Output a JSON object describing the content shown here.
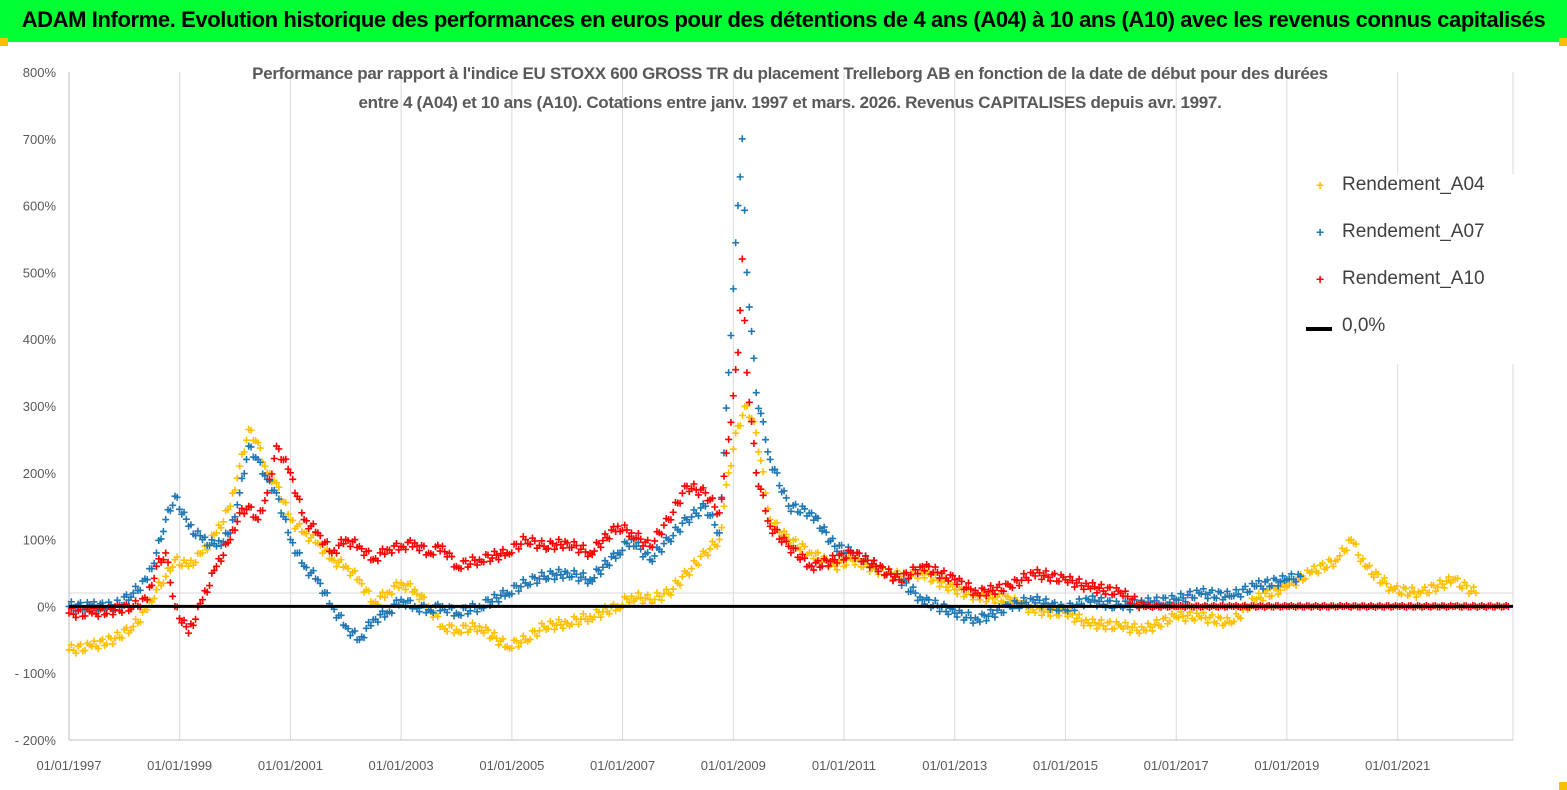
{
  "header": {
    "title": "ADAM Informe. Evolution historique des performances en euros pour des détentions de 4 ans (A04) à 10 ans (A10) avec les revenus connus capitalisés"
  },
  "colors": {
    "banner": "#00ff33",
    "A04": "#ffc000",
    "A07": "#1f77b4",
    "A10": "#ff0000",
    "zero": "#000000",
    "grid": "#d9d9d9"
  },
  "chart_data": {
    "type": "scatter",
    "title_line1": "Performance par rapport à l'indice EU STOXX 600 GROSS TR  du placement Trelleborg AB en fonction de la date de début pour des durées",
    "title_line2": "entre 4 (A04) et 10 ans (A10). Cotations entre janv. 1997 et mars. 2026. Revenus CAPITALISES depuis avr. 1997.",
    "xlabel": "",
    "ylabel": "",
    "x_range": [
      "1997-01-01",
      "2023-02-01"
    ],
    "ylim": [
      -200,
      800
    ],
    "y_ticks": [
      800,
      700,
      600,
      500,
      400,
      300,
      200,
      100,
      0,
      -100,
      -200
    ],
    "y_tick_labels": [
      "800%",
      "700%",
      "600%",
      "500%",
      "400%",
      "300%",
      "200%",
      "100%",
      "0%",
      "- 100%",
      "- 200%"
    ],
    "x_tick_labels": [
      "01/01/1997",
      "01/01/1999",
      "01/01/2001",
      "01/01/2003",
      "01/01/2005",
      "01/01/2007",
      "01/01/2009",
      "01/01/2011",
      "01/01/2013",
      "01/01/2015",
      "01/01/2017",
      "01/01/2019",
      "01/01/2021"
    ],
    "grid": "vertical lines at each x tick",
    "legend_position": "top-right",
    "series": [
      {
        "name": "Rendement_A04",
        "marker": "+",
        "points": [
          [
            "1997-01-01",
            -65
          ],
          [
            "1997-06-01",
            -60
          ],
          [
            "1997-11-01",
            -48
          ],
          [
            "1998-03-01",
            -30
          ],
          [
            "1998-06-01",
            -5
          ],
          [
            "1998-08-01",
            25
          ],
          [
            "1998-10-01",
            45
          ],
          [
            "1998-12-01",
            70
          ],
          [
            "1999-03-01",
            60
          ],
          [
            "1999-06-01",
            80
          ],
          [
            "1999-09-01",
            110
          ],
          [
            "1999-12-01",
            150
          ],
          [
            "2000-02-01",
            210
          ],
          [
            "2000-04-01",
            265
          ],
          [
            "2000-06-01",
            245
          ],
          [
            "2000-08-01",
            200
          ],
          [
            "2000-10-01",
            185
          ],
          [
            "2001-01-01",
            130
          ],
          [
            "2001-04-01",
            110
          ],
          [
            "2001-07-01",
            95
          ],
          [
            "2001-10-01",
            70
          ],
          [
            "2002-01-01",
            60
          ],
          [
            "2002-04-01",
            40
          ],
          [
            "2002-07-01",
            5
          ],
          [
            "2002-10-01",
            20
          ],
          [
            "2003-01-01",
            35
          ],
          [
            "2003-04-01",
            25
          ],
          [
            "2003-07-01",
            0
          ],
          [
            "2003-10-01",
            -30
          ],
          [
            "2004-01-01",
            -35
          ],
          [
            "2004-06-01",
            -30
          ],
          [
            "2004-12-01",
            -60
          ],
          [
            "2005-04-01",
            -50
          ],
          [
            "2005-08-01",
            -30
          ],
          [
            "2006-01-01",
            -25
          ],
          [
            "2006-06-01",
            -15
          ],
          [
            "2006-12-01",
            0
          ],
          [
            "2007-03-01",
            15
          ],
          [
            "2007-07-01",
            10
          ],
          [
            "2007-11-01",
            20
          ],
          [
            "2008-03-01",
            50
          ],
          [
            "2008-07-01",
            80
          ],
          [
            "2008-10-01",
            100
          ],
          [
            "2008-12-01",
            200
          ],
          [
            "2009-02-01",
            270
          ],
          [
            "2009-04-01",
            300
          ],
          [
            "2009-06-01",
            260
          ],
          [
            "2009-09-01",
            130
          ],
          [
            "2010-01-01",
            100
          ],
          [
            "2010-06-01",
            80
          ],
          [
            "2010-11-01",
            60
          ],
          [
            "2011-03-01",
            70
          ],
          [
            "2011-08-01",
            55
          ],
          [
            "2012-01-01",
            45
          ],
          [
            "2012-06-01",
            50
          ],
          [
            "2013-01-01",
            25
          ],
          [
            "2013-06-01",
            15
          ],
          [
            "2014-01-01",
            10
          ],
          [
            "2014-06-01",
            -5
          ],
          [
            "2015-01-01",
            -10
          ],
          [
            "2015-06-01",
            -25
          ],
          [
            "2016-01-01",
            -30
          ],
          [
            "2016-06-01",
            -35
          ],
          [
            "2017-01-01",
            -15
          ],
          [
            "2017-06-01",
            -15
          ],
          [
            "2018-01-01",
            -25
          ],
          [
            "2018-06-01",
            10
          ],
          [
            "2019-01-01",
            30
          ],
          [
            "2019-06-01",
            50
          ],
          [
            "2019-12-01",
            70
          ],
          [
            "2020-03-01",
            100
          ],
          [
            "2020-06-01",
            60
          ],
          [
            "2020-12-01",
            25
          ],
          [
            "2021-06-01",
            20
          ],
          [
            "2022-01-01",
            40
          ],
          [
            "2022-06-01",
            20
          ]
        ]
      },
      {
        "name": "Rendement_A07",
        "marker": "+",
        "points": [
          [
            "1997-01-01",
            0
          ],
          [
            "1997-06-01",
            0
          ],
          [
            "1997-11-01",
            0
          ],
          [
            "1998-03-01",
            20
          ],
          [
            "1998-06-01",
            40
          ],
          [
            "1998-08-01",
            80
          ],
          [
            "1998-10-01",
            130
          ],
          [
            "1998-12-01",
            165
          ],
          [
            "1999-03-01",
            120
          ],
          [
            "1999-06-01",
            100
          ],
          [
            "1999-09-01",
            90
          ],
          [
            "1999-12-01",
            110
          ],
          [
            "2000-02-01",
            170
          ],
          [
            "2000-04-01",
            240
          ],
          [
            "2000-06-01",
            220
          ],
          [
            "2000-08-01",
            190
          ],
          [
            "2000-10-01",
            170
          ],
          [
            "2001-01-01",
            100
          ],
          [
            "2001-04-01",
            60
          ],
          [
            "2001-07-01",
            40
          ],
          [
            "2001-10-01",
            0
          ],
          [
            "2002-01-01",
            -30
          ],
          [
            "2002-04-01",
            -50
          ],
          [
            "2002-07-01",
            -20
          ],
          [
            "2002-10-01",
            -10
          ],
          [
            "2003-01-01",
            10
          ],
          [
            "2003-04-01",
            0
          ],
          [
            "2003-07-01",
            -5
          ],
          [
            "2003-10-01",
            0
          ],
          [
            "2004-01-01",
            -10
          ],
          [
            "2004-06-01",
            0
          ],
          [
            "2004-12-01",
            20
          ],
          [
            "2005-04-01",
            35
          ],
          [
            "2005-08-01",
            45
          ],
          [
            "2006-01-01",
            50
          ],
          [
            "2006-06-01",
            40
          ],
          [
            "2006-12-01",
            80
          ],
          [
            "2007-03-01",
            100
          ],
          [
            "2007-07-01",
            70
          ],
          [
            "2007-11-01",
            100
          ],
          [
            "2008-03-01",
            130
          ],
          [
            "2008-07-01",
            150
          ],
          [
            "2008-10-01",
            110
          ],
          [
            "2008-12-01",
            350
          ],
          [
            "2009-02-01",
            600
          ],
          [
            "2009-03-01",
            700
          ],
          [
            "2009-04-01",
            500
          ],
          [
            "2009-06-01",
            320
          ],
          [
            "2009-09-01",
            220
          ],
          [
            "2010-01-01",
            150
          ],
          [
            "2010-06-01",
            140
          ],
          [
            "2010-11-01",
            90
          ],
          [
            "2011-03-01",
            80
          ],
          [
            "2011-08-01",
            60
          ],
          [
            "2012-01-01",
            40
          ],
          [
            "2012-06-01",
            10
          ],
          [
            "2013-01-01",
            -10
          ],
          [
            "2013-06-01",
            -20
          ],
          [
            "2014-01-01",
            0
          ],
          [
            "2014-06-01",
            10
          ],
          [
            "2015-01-01",
            -5
          ],
          [
            "2015-06-01",
            10
          ],
          [
            "2016-01-01",
            0
          ],
          [
            "2016-06-01",
            5
          ],
          [
            "2017-01-01",
            10
          ],
          [
            "2017-06-01",
            20
          ],
          [
            "2018-01-01",
            15
          ],
          [
            "2018-06-01",
            30
          ],
          [
            "2019-01-01",
            40
          ],
          [
            "2019-04-01",
            45
          ]
        ]
      },
      {
        "name": "Rendement_A10",
        "marker": "+",
        "points": [
          [
            "1997-01-01",
            -10
          ],
          [
            "1997-06-01",
            -10
          ],
          [
            "1997-11-01",
            -5
          ],
          [
            "1998-03-01",
            0
          ],
          [
            "1998-06-01",
            10
          ],
          [
            "1998-08-01",
            60
          ],
          [
            "1998-10-01",
            80
          ],
          [
            "1998-12-01",
            0
          ],
          [
            "1999-03-01",
            -40
          ],
          [
            "1999-06-01",
            10
          ],
          [
            "1999-09-01",
            60
          ],
          [
            "1999-12-01",
            100
          ],
          [
            "2000-02-01",
            140
          ],
          [
            "2000-04-01",
            150
          ],
          [
            "2000-06-01",
            130
          ],
          [
            "2000-08-01",
            170
          ],
          [
            "2000-10-01",
            240
          ],
          [
            "2001-01-01",
            200
          ],
          [
            "2001-04-01",
            130
          ],
          [
            "2001-07-01",
            110
          ],
          [
            "2001-10-01",
            80
          ],
          [
            "2002-01-01",
            100
          ],
          [
            "2002-04-01",
            90
          ],
          [
            "2002-07-01",
            70
          ],
          [
            "2002-10-01",
            85
          ],
          [
            "2003-01-01",
            90
          ],
          [
            "2003-04-01",
            95
          ],
          [
            "2003-07-01",
            80
          ],
          [
            "2003-10-01",
            90
          ],
          [
            "2004-01-01",
            60
          ],
          [
            "2004-06-01",
            70
          ],
          [
            "2004-12-01",
            80
          ],
          [
            "2005-04-01",
            100
          ],
          [
            "2005-08-01",
            90
          ],
          [
            "2006-01-01",
            95
          ],
          [
            "2006-06-01",
            80
          ],
          [
            "2006-12-01",
            120
          ],
          [
            "2007-03-01",
            110
          ],
          [
            "2007-07-01",
            90
          ],
          [
            "2007-11-01",
            130
          ],
          [
            "2008-03-01",
            180
          ],
          [
            "2008-07-01",
            170
          ],
          [
            "2008-10-01",
            140
          ],
          [
            "2008-12-01",
            250
          ],
          [
            "2009-02-01",
            380
          ],
          [
            "2009-03-01",
            520
          ],
          [
            "2009-04-01",
            350
          ],
          [
            "2009-06-01",
            200
          ],
          [
            "2009-09-01",
            120
          ],
          [
            "2010-01-01",
            90
          ],
          [
            "2010-06-01",
            60
          ],
          [
            "2010-11-01",
            70
          ],
          [
            "2011-03-01",
            80
          ],
          [
            "2011-08-01",
            60
          ],
          [
            "2012-01-01",
            40
          ],
          [
            "2012-06-01",
            60
          ],
          [
            "2013-01-01",
            40
          ],
          [
            "2013-06-01",
            20
          ],
          [
            "2014-01-01",
            30
          ],
          [
            "2014-06-01",
            50
          ],
          [
            "2015-01-01",
            40
          ],
          [
            "2015-06-01",
            30
          ],
          [
            "2016-01-01",
            20
          ],
          [
            "2016-06-01",
            0
          ],
          [
            "2017-01-01",
            0
          ],
          [
            "2018-01-01",
            0
          ],
          [
            "2019-01-01",
            0
          ],
          [
            "2020-01-01",
            0
          ],
          [
            "2021-01-01",
            0
          ],
          [
            "2022-01-01",
            0
          ],
          [
            "2023-01-01",
            0
          ]
        ]
      },
      {
        "name": "0,0%",
        "type": "line",
        "points": [
          [
            "1997-01-01",
            0
          ],
          [
            "2023-02-01",
            0
          ]
        ]
      }
    ]
  }
}
